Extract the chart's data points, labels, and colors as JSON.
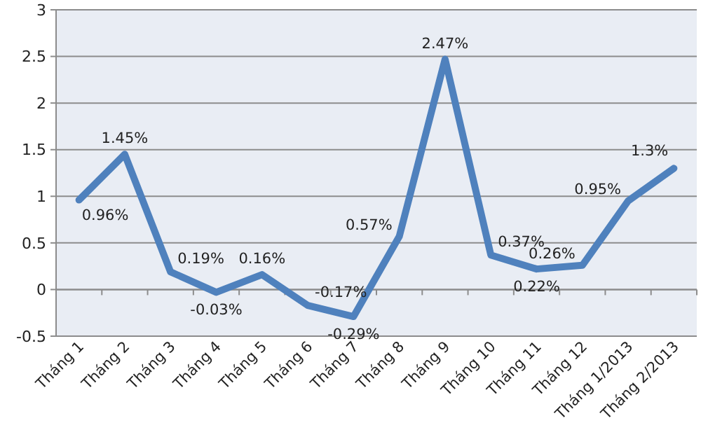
{
  "chart_data": {
    "type": "line",
    "categories": [
      "Tháng 1",
      "Tháng 2",
      "Tháng 3",
      "Tháng 4",
      "Tháng 5",
      "Tháng 6",
      "Tháng 7",
      "Tháng 8",
      "Tháng 9",
      "Tháng 10",
      "Tháng 11",
      "Tháng 12",
      "Tháng 1/2013",
      "Tháng 2/2013"
    ],
    "series": [
      {
        "color": "#4f81bd",
        "values": [
          0.96,
          1.45,
          0.19,
          -0.03,
          0.16,
          -0.17,
          -0.29,
          0.57,
          2.47,
          0.37,
          0.22,
          0.26,
          0.95,
          1.3
        ],
        "value_labels": [
          "0.96%",
          "1.45%",
          "0.19%",
          "-0.03%",
          "0.16%",
          "-0.17%",
          "-0.29%",
          "0.57%",
          "2.47%",
          "0.37%",
          "0.22%",
          "0.26%",
          "0.95%",
          "1.3%"
        ]
      }
    ],
    "ylim": [
      -0.5,
      3
    ],
    "yticks": [
      -0.5,
      0,
      0.5,
      1,
      1.5,
      2,
      2.5,
      3
    ],
    "grid": "y",
    "marker": "none",
    "line_style": "solid"
  }
}
